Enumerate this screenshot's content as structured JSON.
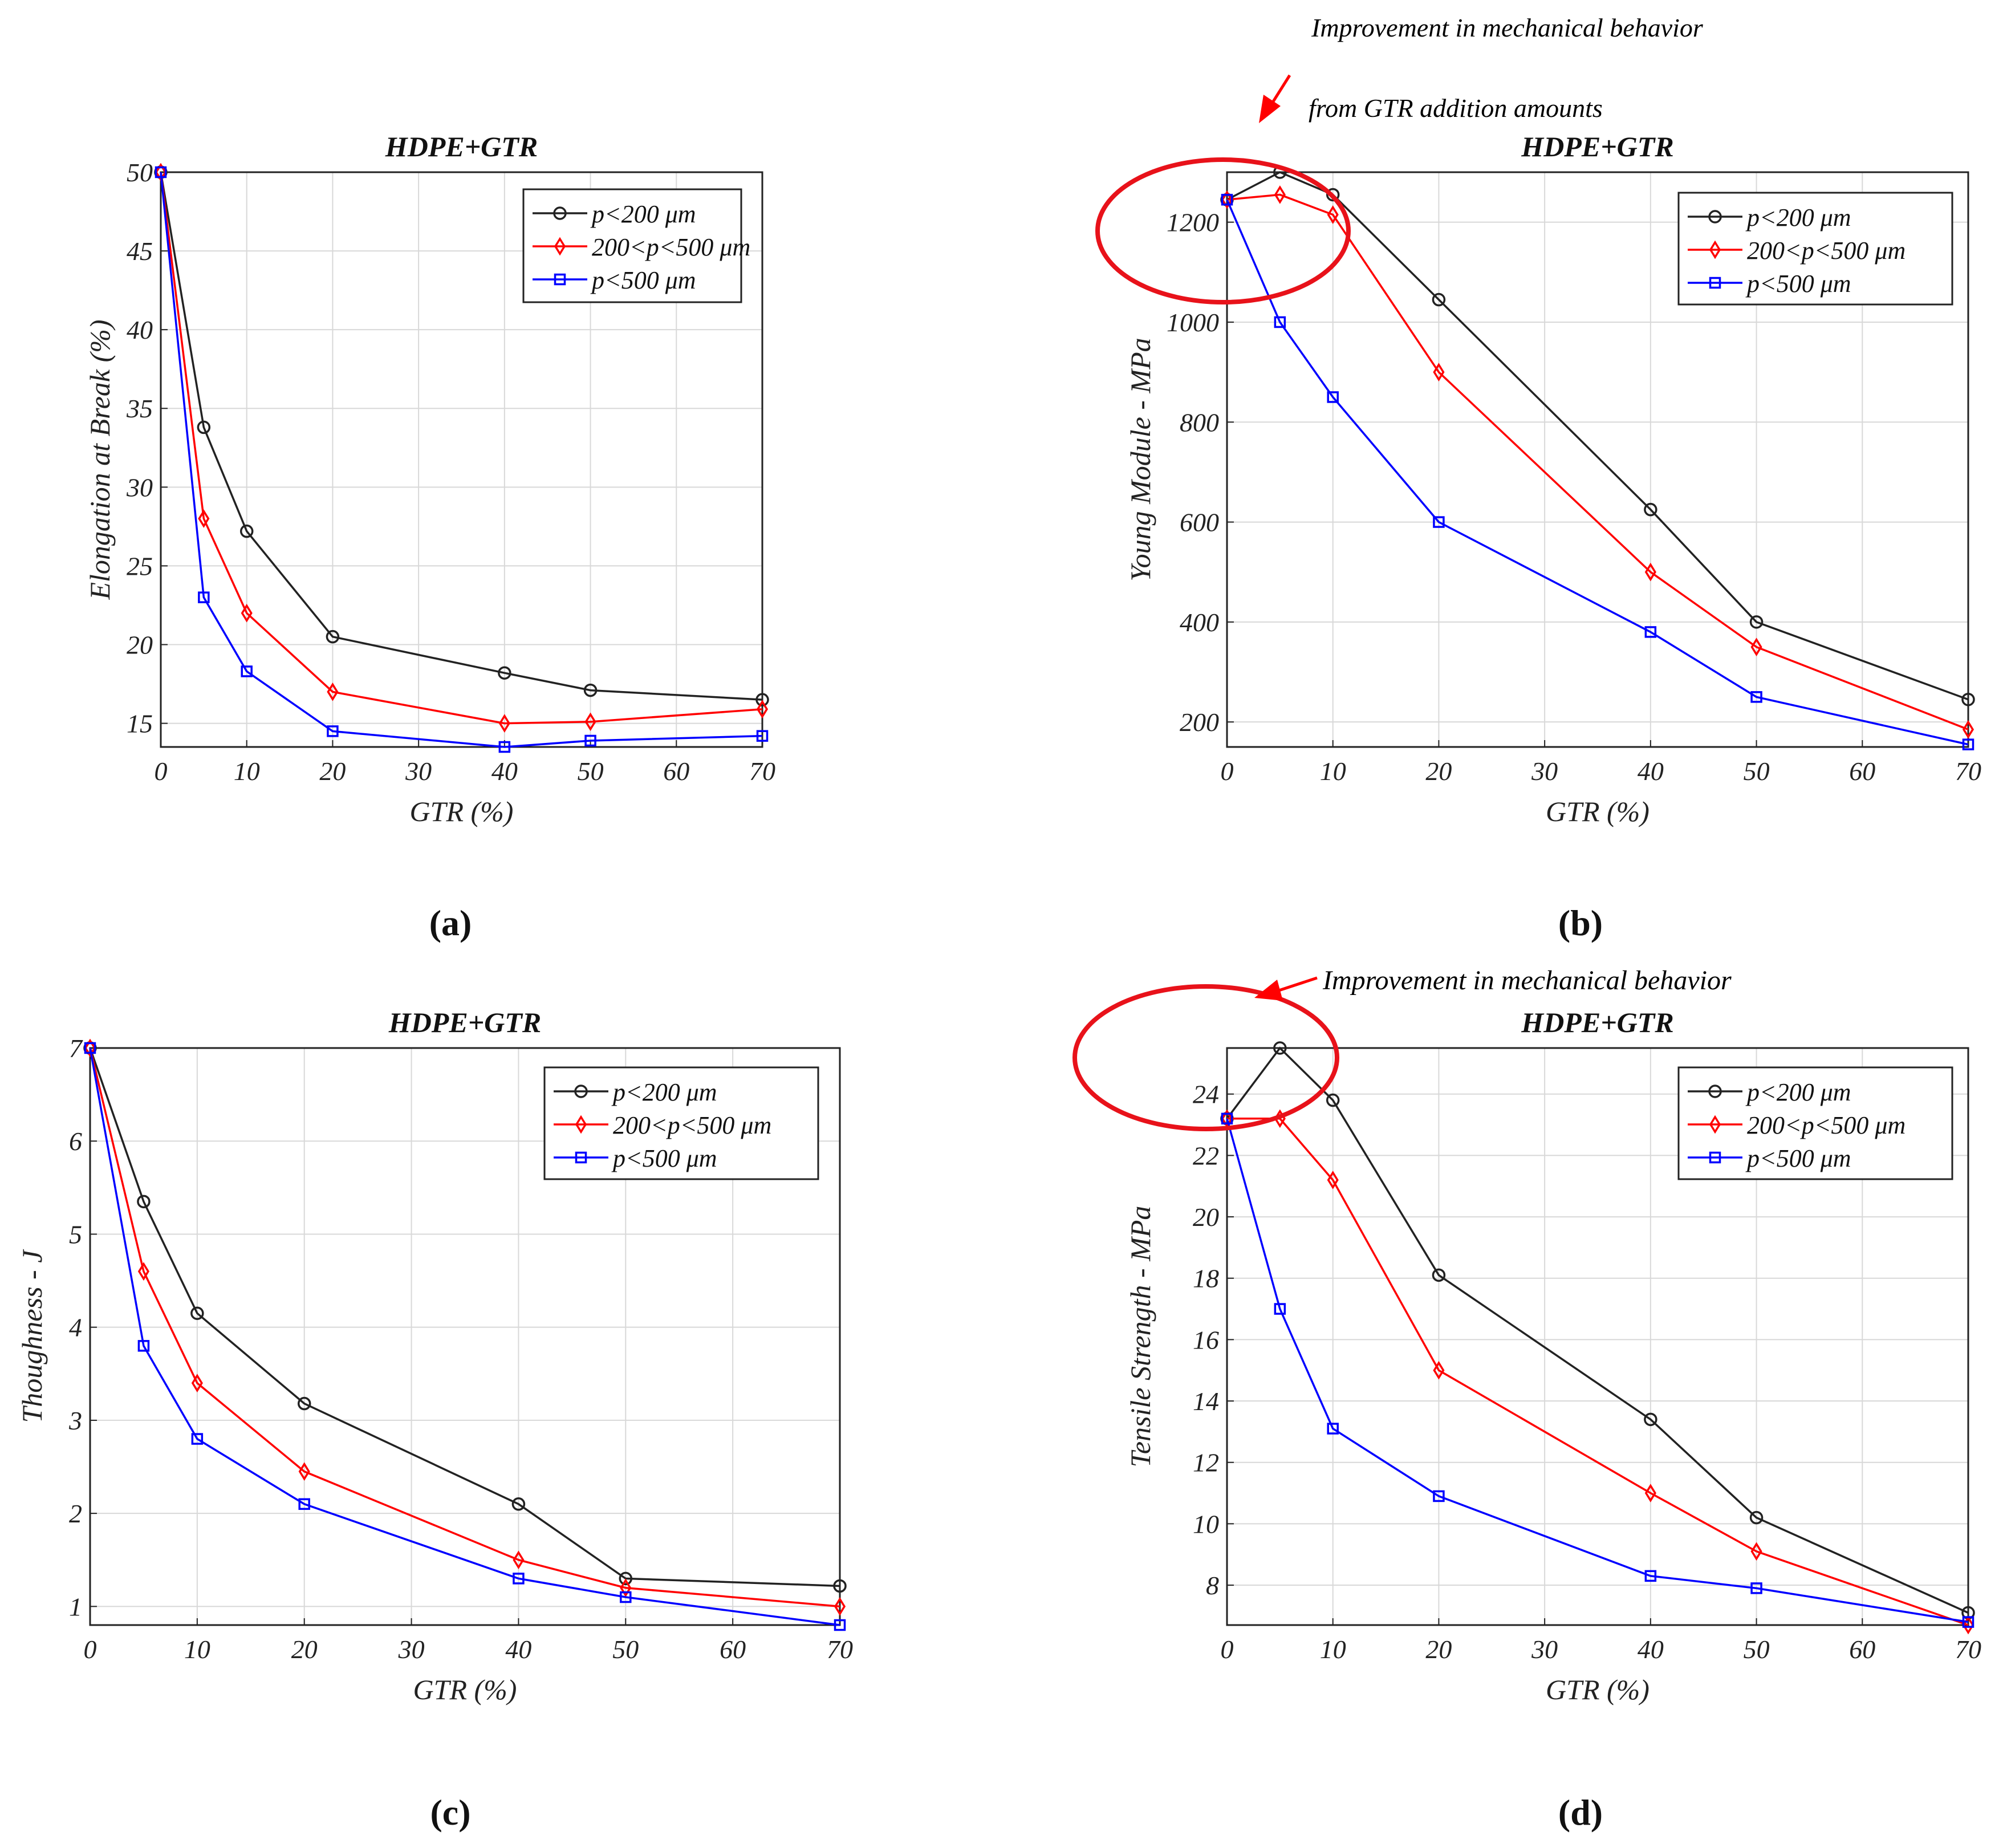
{
  "figure": {
    "annotation_b_line1": "Improvement in mechanical behavior",
    "annotation_b_line2": "from GTR addition amounts",
    "annotation_d": "Improvement in mechanical behavior"
  },
  "chart_data": [
    {
      "id": "a",
      "type": "line",
      "panel_label": "(a)",
      "title": "HDPE+GTR",
      "xlabel": "GTR (%)",
      "ylabel": "Elongation at Break (%)",
      "xlim": [
        0,
        70
      ],
      "ylim": [
        13.5,
        50
      ],
      "xticks": [
        0,
        10,
        20,
        30,
        40,
        50,
        60,
        70
      ],
      "yticks": [
        15,
        20,
        25,
        30,
        35,
        40,
        45,
        50
      ],
      "grid": true,
      "legend_position": "top-right",
      "x": [
        0,
        5,
        10,
        20,
        40,
        50,
        70
      ],
      "series": [
        {
          "name": "p<200  μm",
          "color": "#222222",
          "marker": "circle",
          "values": [
            50,
            33.8,
            27.2,
            20.5,
            18.2,
            17.1,
            16.5
          ]
        },
        {
          "name": "200<p<500  μm",
          "color": "#ff0000",
          "marker": "diamond",
          "values": [
            50,
            28,
            22,
            17,
            15,
            15.1,
            15.9
          ]
        },
        {
          "name": "p<500  μm",
          "color": "#0000ff",
          "marker": "square",
          "values": [
            50,
            23,
            18.3,
            14.5,
            13.5,
            13.9,
            14.2
          ]
        }
      ]
    },
    {
      "id": "b",
      "type": "line",
      "panel_label": "(b)",
      "title": "HDPE+GTR",
      "xlabel": "GTR (%)",
      "ylabel": "Young Module - MPa",
      "xlim": [
        0,
        70
      ],
      "ylim": [
        150,
        1300
      ],
      "xticks": [
        0,
        10,
        20,
        30,
        40,
        50,
        60,
        70
      ],
      "yticks": [
        200,
        400,
        600,
        800,
        1000,
        1200
      ],
      "grid": true,
      "legend_position": "top-right",
      "x": [
        0,
        5,
        10,
        20,
        40,
        50,
        70
      ],
      "series": [
        {
          "name": "p<200  μm",
          "color": "#222222",
          "marker": "circle",
          "values": [
            1245,
            1300,
            1255,
            1045,
            625,
            400,
            245
          ]
        },
        {
          "name": "200<p<500  μm",
          "color": "#ff0000",
          "marker": "diamond",
          "values": [
            1245,
            1255,
            1215,
            900,
            500,
            350,
            185
          ]
        },
        {
          "name": "p<500  μm",
          "color": "#0000ff",
          "marker": "square",
          "values": [
            1245,
            1000,
            850,
            600,
            380,
            250,
            155
          ]
        }
      ]
    },
    {
      "id": "c",
      "type": "line",
      "panel_label": "(c)",
      "title": "HDPE+GTR",
      "xlabel": "GTR (%)",
      "ylabel": "Thoughness - J",
      "xlim": [
        0,
        70
      ],
      "ylim": [
        0.8,
        7
      ],
      "xticks": [
        0,
        10,
        20,
        30,
        40,
        50,
        60,
        70
      ],
      "yticks": [
        1,
        2,
        3,
        4,
        5,
        6,
        7
      ],
      "grid": true,
      "legend_position": "top-right",
      "x": [
        0,
        5,
        10,
        20,
        40,
        50,
        70
      ],
      "series": [
        {
          "name": "p<200  μm",
          "color": "#222222",
          "marker": "circle",
          "values": [
            7,
            5.35,
            4.15,
            3.18,
            2.1,
            1.3,
            1.22
          ]
        },
        {
          "name": "200<p<500  μm",
          "color": "#ff0000",
          "marker": "diamond",
          "values": [
            7,
            4.6,
            3.4,
            2.45,
            1.5,
            1.2,
            1.0
          ]
        },
        {
          "name": "p<500  μm",
          "color": "#0000ff",
          "marker": "square",
          "values": [
            7,
            3.8,
            2.8,
            2.1,
            1.3,
            1.1,
            0.8
          ]
        }
      ]
    },
    {
      "id": "d",
      "type": "line",
      "panel_label": "(d)",
      "title": "HDPE+GTR",
      "xlabel": "GTR (%)",
      "ylabel": "Tensile Strength - MPa",
      "xlim": [
        0,
        70
      ],
      "ylim": [
        6.7,
        25.5
      ],
      "xticks": [
        0,
        10,
        20,
        30,
        40,
        50,
        60,
        70
      ],
      "yticks": [
        8,
        10,
        12,
        14,
        16,
        18,
        20,
        22,
        24
      ],
      "grid": true,
      "legend_position": "top-right",
      "x": [
        0,
        5,
        10,
        20,
        40,
        50,
        70
      ],
      "series": [
        {
          "name": "p<200  μm",
          "color": "#222222",
          "marker": "circle",
          "values": [
            23.2,
            25.5,
            23.8,
            18.1,
            13.4,
            10.2,
            7.1
          ]
        },
        {
          "name": "200<p<500  μm",
          "color": "#ff0000",
          "marker": "diamond",
          "values": [
            23.2,
            23.2,
            21.2,
            15.0,
            11.0,
            9.1,
            6.7
          ]
        },
        {
          "name": "p<500  μm",
          "color": "#0000ff",
          "marker": "square",
          "values": [
            23.2,
            17.0,
            13.1,
            10.9,
            8.3,
            7.9,
            6.8
          ]
        }
      ]
    }
  ]
}
